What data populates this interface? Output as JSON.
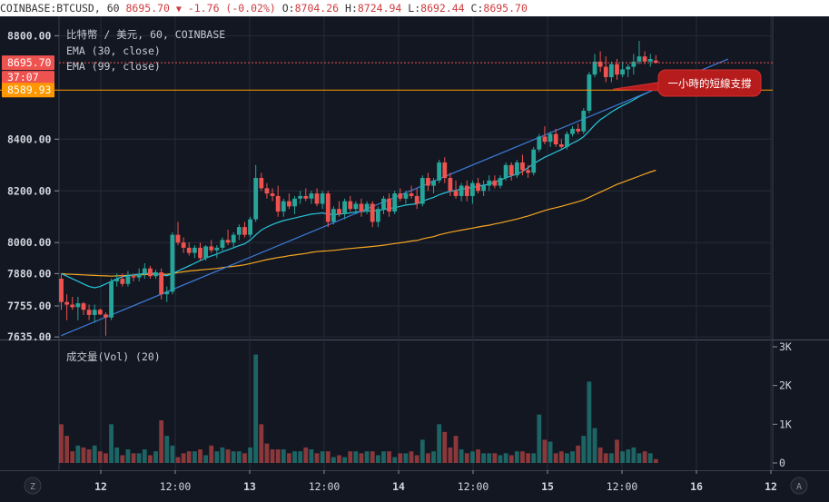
{
  "topbar": {
    "symbol": "COINBASE:BTCUSD, 60",
    "last": "8695.70",
    "change": "-1.76 (-0.02%)",
    "o_label": "O:",
    "o_value": "8704.26",
    "h_label": "H:",
    "h_value": "8724.94",
    "l_label": "L:",
    "l_value": "8692.44",
    "c_label": "C:",
    "c_value": "8695.70"
  },
  "legend": {
    "title": "比特幣 / 美元, 60, COINBASE",
    "ema30": "EMA (30, close)",
    "ema99": "EMA (99, close)",
    "volume": "成交量(Vol) (20)"
  },
  "badges": {
    "price": "8695.70",
    "countdown": "37:07",
    "support": "8589.93"
  },
  "annotation": {
    "text": "一小時的短線支撐"
  },
  "buttons": {
    "left": "Z",
    "right": "A"
  },
  "colors": {
    "up": "#26a69a",
    "down": "#ef5350",
    "ema30": "#26c6da",
    "ema99": "#f6a623",
    "trendline": "#3d7bd8",
    "support": "#ff9800",
    "background": "#131722"
  },
  "chart_data": {
    "type": "candlestick",
    "title": "比特幣 / 美元, 60, COINBASE",
    "x_ticks": [
      "12",
      "12:00",
      "13",
      "12:00",
      "14",
      "12:00",
      "15",
      "12:00",
      "16",
      "12"
    ],
    "y_ticks": [
      7635,
      7755,
      7880,
      8000,
      8200,
      8400,
      8800
    ],
    "ylim": [
      7625,
      8840
    ],
    "volume_ticks": [
      "0",
      "1K",
      "2K",
      "3K"
    ],
    "volume_ylim": [
      0,
      3000
    ],
    "candles": [
      [
        7860,
        7880,
        7740,
        7770
      ],
      [
        7770,
        7800,
        7700,
        7760
      ],
      [
        7760,
        7790,
        7740,
        7750
      ],
      [
        7750,
        7790,
        7700,
        7765
      ],
      [
        7765,
        7770,
        7720,
        7740
      ],
      [
        7740,
        7760,
        7700,
        7720
      ],
      [
        7720,
        7760,
        7690,
        7740
      ],
      [
        7740,
        7745,
        7720,
        7722
      ],
      [
        7722,
        7730,
        7640,
        7710
      ],
      [
        7710,
        7860,
        7700,
        7850
      ],
      [
        7850,
        7880,
        7830,
        7860
      ],
      [
        7860,
        7880,
        7830,
        7840
      ],
      [
        7840,
        7890,
        7830,
        7870
      ],
      [
        7870,
        7880,
        7850,
        7865
      ],
      [
        7865,
        7900,
        7850,
        7880
      ],
      [
        7880,
        7920,
        7860,
        7900
      ],
      [
        7900,
        7910,
        7860,
        7870
      ],
      [
        7870,
        7895,
        7860,
        7885
      ],
      [
        7885,
        7900,
        7780,
        7800
      ],
      [
        7800,
        7830,
        7770,
        7810
      ],
      [
        7810,
        8040,
        7800,
        8030
      ],
      [
        8030,
        8080,
        7990,
        8000
      ],
      [
        8000,
        8020,
        7960,
        7980
      ],
      [
        7980,
        8000,
        7950,
        7960
      ],
      [
        7960,
        7990,
        7940,
        7980
      ],
      [
        7980,
        8000,
        7930,
        7940
      ],
      [
        7940,
        7990,
        7930,
        7985
      ],
      [
        7985,
        8010,
        7960,
        7970
      ],
      [
        7970,
        7990,
        7940,
        7980
      ],
      [
        7980,
        8020,
        7970,
        8010
      ],
      [
        8010,
        8050,
        7990,
        8000
      ],
      [
        8000,
        8040,
        7980,
        8030
      ],
      [
        8030,
        8070,
        8010,
        8060
      ],
      [
        8060,
        8080,
        8020,
        8030
      ],
      [
        8030,
        8100,
        8020,
        8090
      ],
      [
        8090,
        8300,
        8080,
        8250
      ],
      [
        8250,
        8270,
        8200,
        8210
      ],
      [
        8210,
        8230,
        8170,
        8190
      ],
      [
        8190,
        8210,
        8160,
        8180
      ],
      [
        8180,
        8220,
        8100,
        8120
      ],
      [
        8120,
        8170,
        8100,
        8160
      ],
      [
        8160,
        8190,
        8130,
        8140
      ],
      [
        8140,
        8180,
        8110,
        8170
      ],
      [
        8170,
        8200,
        8150,
        8180
      ],
      [
        8180,
        8210,
        8160,
        8170
      ],
      [
        8170,
        8200,
        8150,
        8190
      ],
      [
        8190,
        8210,
        8140,
        8150
      ],
      [
        8150,
        8200,
        8130,
        8190
      ],
      [
        8190,
        8200,
        8060,
        8080
      ],
      [
        8080,
        8140,
        8070,
        8130
      ],
      [
        8130,
        8160,
        8100,
        8110
      ],
      [
        8110,
        8170,
        8090,
        8160
      ],
      [
        8160,
        8180,
        8120,
        8130
      ],
      [
        8130,
        8160,
        8110,
        8150
      ],
      [
        8150,
        8170,
        8100,
        8120
      ],
      [
        8120,
        8160,
        8110,
        8150
      ],
      [
        8150,
        8160,
        8060,
        8080
      ],
      [
        8080,
        8140,
        8060,
        8130
      ],
      [
        8130,
        8180,
        8110,
        8170
      ],
      [
        8170,
        8190,
        8100,
        8120
      ],
      [
        8120,
        8200,
        8110,
        8190
      ],
      [
        8190,
        8210,
        8160,
        8170
      ],
      [
        8170,
        8200,
        8150,
        8190
      ],
      [
        8190,
        8220,
        8170,
        8180
      ],
      [
        8180,
        8210,
        8130,
        8150
      ],
      [
        8150,
        8260,
        8140,
        8250
      ],
      [
        8250,
        8270,
        8200,
        8220
      ],
      [
        8220,
        8250,
        8190,
        8240
      ],
      [
        8240,
        8320,
        8230,
        8310
      ],
      [
        8310,
        8330,
        8230,
        8250
      ],
      [
        8250,
        8270,
        8180,
        8200
      ],
      [
        8200,
        8240,
        8170,
        8180
      ],
      [
        8180,
        8230,
        8160,
        8220
      ],
      [
        8220,
        8240,
        8160,
        8180
      ],
      [
        8180,
        8240,
        8150,
        8230
      ],
      [
        8230,
        8250,
        8190,
        8200
      ],
      [
        8200,
        8240,
        8180,
        8220
      ],
      [
        8220,
        8260,
        8200,
        8240
      ],
      [
        8240,
        8260,
        8210,
        8220
      ],
      [
        8220,
        8260,
        8210,
        8250
      ],
      [
        8250,
        8310,
        8240,
        8300
      ],
      [
        8300,
        8310,
        8240,
        8260
      ],
      [
        8260,
        8320,
        8250,
        8310
      ],
      [
        8310,
        8340,
        8260,
        8280
      ],
      [
        8280,
        8300,
        8250,
        8270
      ],
      [
        8270,
        8370,
        8260,
        8360
      ],
      [
        8360,
        8420,
        8350,
        8410
      ],
      [
        8410,
        8450,
        8380,
        8390
      ],
      [
        8390,
        8430,
        8370,
        8420
      ],
      [
        8420,
        8440,
        8370,
        8380
      ],
      [
        8380,
        8400,
        8360,
        8370
      ],
      [
        8370,
        8430,
        8360,
        8420
      ],
      [
        8420,
        8450,
        8410,
        8440
      ],
      [
        8440,
        8460,
        8420,
        8430
      ],
      [
        8430,
        8520,
        8420,
        8510
      ],
      [
        8510,
        8660,
        8500,
        8650
      ],
      [
        8650,
        8730,
        8640,
        8700
      ],
      [
        8700,
        8740,
        8660,
        8680
      ],
      [
        8680,
        8720,
        8620,
        8640
      ],
      [
        8640,
        8700,
        8620,
        8690
      ],
      [
        8690,
        8710,
        8630,
        8650
      ],
      [
        8650,
        8700,
        8640,
        8670
      ],
      [
        8670,
        8690,
        8640,
        8680
      ],
      [
        8680,
        8730,
        8650,
        8700
      ],
      [
        8700,
        8780,
        8690,
        8720
      ],
      [
        8720,
        8740,
        8690,
        8700
      ],
      [
        8700,
        8730,
        8680,
        8710
      ],
      [
        8704.26,
        8724.94,
        8692.44,
        8695.7
      ]
    ],
    "volume": [
      1000,
      700,
      300,
      450,
      400,
      350,
      450,
      300,
      250,
      1000,
      400,
      200,
      350,
      250,
      250,
      350,
      200,
      300,
      1100,
      700,
      450,
      150,
      250,
      300,
      300,
      350,
      200,
      450,
      300,
      400,
      350,
      300,
      300,
      250,
      400,
      2800,
      1000,
      500,
      350,
      350,
      350,
      250,
      300,
      300,
      400,
      350,
      250,
      300,
      300,
      150,
      200,
      150,
      300,
      300,
      250,
      300,
      300,
      200,
      300,
      300,
      150,
      250,
      250,
      300,
      200,
      600,
      250,
      300,
      1000,
      800,
      400,
      700,
      350,
      250,
      300,
      350,
      250,
      250,
      250,
      200,
      250,
      200,
      300,
      300,
      250,
      250,
      1250,
      600,
      550,
      250,
      300,
      250,
      300,
      450,
      700,
      2100,
      900,
      400,
      250,
      250,
      600,
      300,
      350,
      400,
      250,
      300,
      250,
      100
    ],
    "ema30": [
      7880,
      7870,
      7860,
      7850,
      7840,
      7830,
      7825,
      7830,
      7840,
      7850,
      7860,
      7868,
      7872,
      7875,
      7878,
      7880,
      7882,
      7880,
      7875,
      7872,
      7880,
      7890,
      7900,
      7910,
      7920,
      7930,
      7940,
      7948,
      7955,
      7965,
      7972,
      7980,
      7988,
      7995,
      8010,
      8030,
      8048,
      8060,
      8070,
      8078,
      8085,
      8090,
      8095,
      8100,
      8105,
      8110,
      8112,
      8115,
      8110,
      8108,
      8110,
      8112,
      8115,
      8118,
      8120,
      8122,
      8122,
      8125,
      8128,
      8132,
      8135,
      8140,
      8145,
      8148,
      8150,
      8160,
      8168,
      8175,
      8185,
      8192,
      8198,
      8202,
      8207,
      8210,
      8213,
      8218,
      8222,
      8225,
      8235,
      8242,
      8250,
      8258,
      8265,
      8275,
      8290,
      8305,
      8318,
      8330,
      8340,
      8350,
      8360,
      8372,
      8385,
      8395,
      8410,
      8432,
      8455,
      8475,
      8490,
      8505,
      8518,
      8530,
      8540,
      8552,
      8565,
      8575,
      8585,
      8595
    ],
    "ema99": [
      7880,
      7878,
      7877,
      7876,
      7875,
      7874,
      7873,
      7872,
      7871,
      7870,
      7871,
      7872,
      7873,
      7874,
      7875,
      7876,
      7877,
      7878,
      7878,
      7877,
      7880,
      7884,
      7887,
      7890,
      7892,
      7894,
      7896,
      7898,
      7900,
      7903,
      7906,
      7908,
      7911,
      7914,
      7919,
      7924,
      7929,
      7934,
      7938,
      7942,
      7945,
      7949,
      7952,
      7955,
      7958,
      7962,
      7965,
      7967,
      7968,
      7970,
      7972,
      7975,
      7977,
      7979,
      7981,
      7983,
      7985,
      7987,
      7990,
      7993,
      7996,
      7999,
      8002,
      8006,
      8008,
      8014,
      8019,
      8023,
      8030,
      8035,
      8040,
      8044,
      8048,
      8052,
      8056,
      8060,
      8064,
      8067,
      8072,
      8076,
      8081,
      8086,
      8091,
      8097,
      8103,
      8110,
      8117,
      8124,
      8130,
      8135,
      8140,
      8146,
      8152,
      8158,
      8165,
      8175,
      8185,
      8195,
      8205,
      8215,
      8225,
      8233,
      8241,
      8249,
      8257,
      8265,
      8273,
      8280
    ],
    "trendline": {
      "from": [
        0,
        7640
      ],
      "to": [
        120,
        8710
      ]
    },
    "support_level": 8589.93
  }
}
